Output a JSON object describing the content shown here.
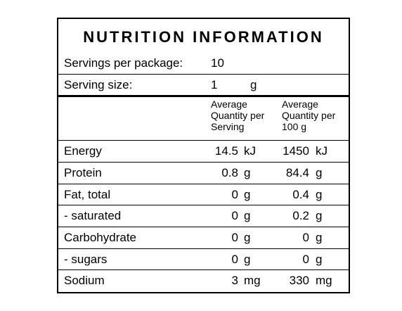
{
  "title": "NUTRITION INFORMATION",
  "servings_per_package": {
    "label": "Servings per package:",
    "value": "10"
  },
  "serving_size": {
    "label": "Serving size:",
    "value": "1",
    "unit": "g"
  },
  "column_headers": {
    "per_serving": [
      "Average",
      "Quantity per",
      "Serving"
    ],
    "per_100g": [
      "Average",
      "Quantity per",
      "100 g"
    ]
  },
  "rows": [
    {
      "name": "Energy",
      "serving": "14.5",
      "serving_unit": "kJ",
      "per100": "1450",
      "per100_unit": "kJ"
    },
    {
      "name": "Protein",
      "serving": "0.8",
      "serving_unit": "g",
      "per100": "84.4",
      "per100_unit": "g"
    },
    {
      "name": "Fat, total",
      "serving": "0",
      "serving_unit": "g",
      "per100": "0.4",
      "per100_unit": "g"
    },
    {
      "name": "- saturated",
      "serving": "0",
      "serving_unit": "g",
      "per100": "0.2",
      "per100_unit": "g"
    },
    {
      "name": "Carbohydrate",
      "serving": "0",
      "serving_unit": "g",
      "per100": "0",
      "per100_unit": "g"
    },
    {
      "name": "- sugars",
      "serving": "0",
      "serving_unit": "g",
      "per100": "0",
      "per100_unit": "g"
    },
    {
      "name": "Sodium",
      "serving": "3",
      "serving_unit": "mg",
      "per100": "330",
      "per100_unit": "mg"
    }
  ]
}
